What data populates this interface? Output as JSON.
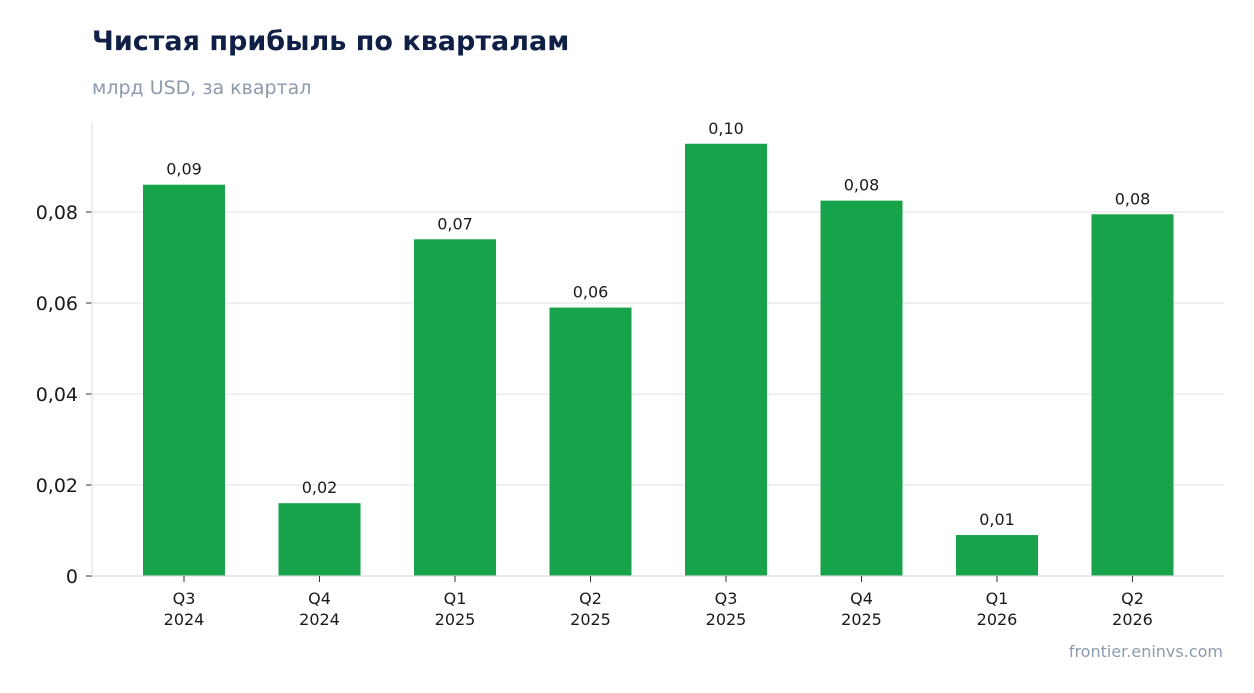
{
  "chart_data": {
    "type": "bar",
    "title": "Чистая прибыль по кварталам",
    "subtitle": "млрд USD, за квартал",
    "categories": [
      {
        "quarter": "Q3",
        "year": "2024"
      },
      {
        "quarter": "Q4",
        "year": "2024"
      },
      {
        "quarter": "Q1",
        "year": "2025"
      },
      {
        "quarter": "Q2",
        "year": "2025"
      },
      {
        "quarter": "Q3",
        "year": "2025"
      },
      {
        "quarter": "Q4",
        "year": "2025"
      },
      {
        "quarter": "Q1",
        "year": "2026"
      },
      {
        "quarter": "Q2",
        "year": "2026"
      }
    ],
    "values": [
      0.086,
      0.016,
      0.074,
      0.059,
      0.095,
      0.0825,
      0.009,
      0.0795
    ],
    "data_labels": [
      "0,09",
      "0,02",
      "0,07",
      "0,06",
      "0,10",
      "0,08",
      "0,01",
      "0,08"
    ],
    "ylim": [
      0,
      0.1
    ],
    "yticks": [
      0,
      0.02,
      0.04,
      0.06,
      0.08
    ],
    "ytick_labels": [
      "0",
      "0,02",
      "0,04",
      "0,06",
      "0,08"
    ],
    "grid": true,
    "bar_color": "#17a34a",
    "source": "frontier.eninvs.com"
  }
}
